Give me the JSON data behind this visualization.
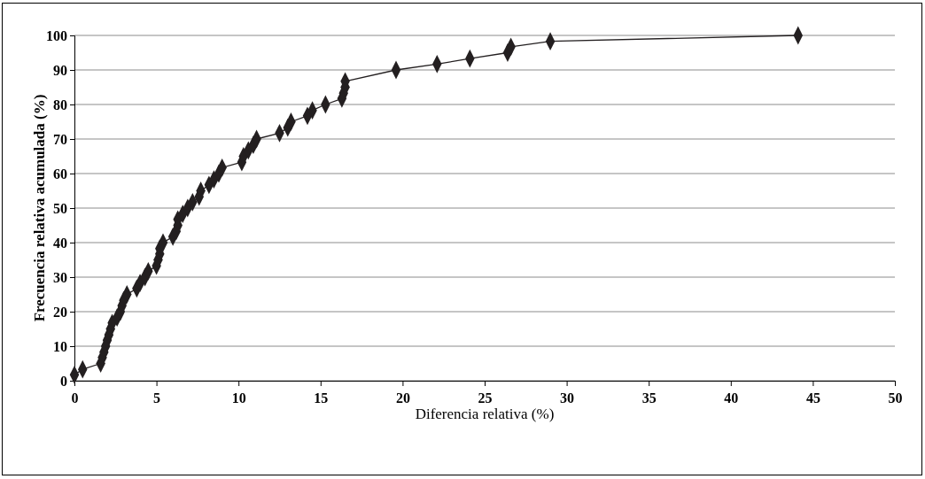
{
  "chart_data": {
    "type": "line",
    "xlabel": "Diferencia relativa (%)",
    "ylabel": "Frecuencia relativa acumulada (%)",
    "xlim": [
      0,
      50
    ],
    "xticks": [
      0,
      5,
      10,
      15,
      20,
      25,
      30,
      35,
      40,
      45,
      50
    ],
    "ylim": [
      0,
      100
    ],
    "yticks": [
      0,
      10,
      20,
      30,
      40,
      50,
      60,
      70,
      80,
      90,
      100
    ],
    "grid": "y",
    "marker": "diamond",
    "line_style": "solid",
    "series": [
      {
        "color": "#231f20",
        "x": [
          0,
          0.5,
          1.6,
          1.7,
          1.8,
          1.9,
          2.0,
          2.1,
          2.2,
          2.3,
          2.6,
          2.8,
          2.9,
          3.0,
          3.2,
          3.8,
          4.0,
          4.3,
          4.5,
          5.0,
          5.1,
          5.2,
          5.2,
          5.4,
          6.0,
          6.2,
          6.3,
          6.3,
          6.6,
          6.9,
          7.2,
          7.6,
          7.7,
          8.2,
          8.5,
          8.8,
          9.0,
          10.2,
          10.3,
          10.6,
          10.9,
          11.1,
          12.5,
          13.0,
          13.2,
          14.2,
          14.5,
          15.3,
          16.3,
          16.4,
          16.5,
          16.5,
          19.6,
          22.1,
          24.1,
          26.4,
          26.6,
          29.0,
          44.1
        ],
        "values": [
          1.7,
          3.3,
          5,
          6.7,
          8.3,
          10,
          11.7,
          13.3,
          15,
          16.7,
          18.3,
          20,
          21.7,
          23.3,
          25,
          26.7,
          28.3,
          30,
          31.7,
          33.3,
          35,
          36.7,
          38.3,
          40,
          41.7,
          43.3,
          45,
          46.7,
          48.3,
          50,
          51.7,
          53.3,
          55,
          56.7,
          58.3,
          60,
          61.7,
          63.3,
          65,
          66.7,
          68.3,
          70,
          71.7,
          73.3,
          75,
          76.7,
          78.3,
          80,
          81.7,
          83.3,
          85,
          86.7,
          90,
          91.7,
          93.3,
          95,
          96.7,
          98.3,
          100
        ]
      }
    ]
  }
}
